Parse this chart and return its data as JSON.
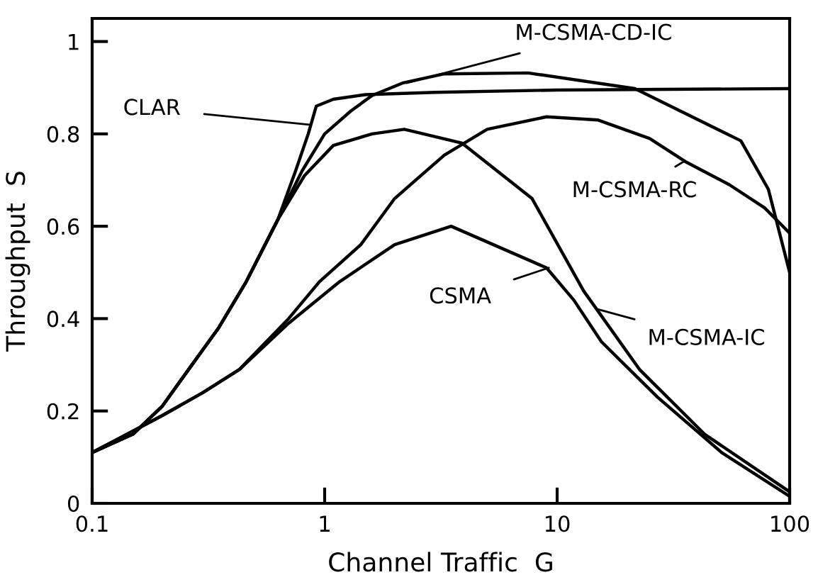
{
  "chart_data": {
    "type": "line",
    "xlabel": "Channel Traffic  G",
    "ylabel": "Throughput  S",
    "log": "x",
    "xlim": [
      0.1,
      100
    ],
    "xticks": [
      0.1,
      1,
      10,
      100
    ],
    "ylim": [
      0,
      1.05
    ],
    "yticks": [
      0,
      0.2,
      0.4,
      0.6,
      0.8,
      1
    ],
    "marker": "none",
    "line_style": "solid",
    "series": [
      {
        "color": "#000000",
        "x": [
          0.1,
          0.15,
          0.2,
          0.26,
          0.35,
          0.46,
          0.63,
          0.75,
          0.85,
          0.92,
          1.09,
          1.5,
          3,
          10,
          100
        ],
        "values": [
          0.11,
          0.15,
          0.21,
          0.29,
          0.38,
          0.48,
          0.615,
          0.72,
          0.8,
          0.86,
          0.875,
          0.885,
          0.89,
          0.895,
          0.898
        ]
      },
      {
        "color": "#000000",
        "x": [
          0.1,
          0.15,
          0.2,
          0.26,
          0.35,
          0.46,
          0.63,
          0.8,
          1.0,
          1.3,
          1.6,
          2.16,
          3.27,
          7.5,
          21.6,
          61.7,
          81,
          100
        ],
        "values": [
          0.11,
          0.15,
          0.21,
          0.29,
          0.38,
          0.48,
          0.615,
          0.72,
          0.8,
          0.85,
          0.883,
          0.91,
          0.93,
          0.932,
          0.898,
          0.785,
          0.68,
          0.5
        ]
      },
      {
        "color": "#000000",
        "x": [
          0.1,
          0.15,
          0.2,
          0.26,
          0.35,
          0.46,
          0.63,
          0.82,
          1.09,
          1.6,
          2.2,
          3.9,
          7.8,
          13,
          22.6,
          43,
          100
        ],
        "values": [
          0.11,
          0.15,
          0.21,
          0.29,
          0.38,
          0.48,
          0.615,
          0.71,
          0.775,
          0.8,
          0.81,
          0.78,
          0.66,
          0.46,
          0.29,
          0.15,
          0.025
        ]
      },
      {
        "color": "#000000",
        "x": [
          0.1,
          0.13,
          0.2,
          0.3,
          0.43,
          0.7,
          0.95,
          1.43,
          2,
          3.27,
          5,
          9,
          15,
          25,
          35.6,
          55,
          78,
          100
        ],
        "values": [
          0.11,
          0.14,
          0.19,
          0.24,
          0.29,
          0.4,
          0.48,
          0.56,
          0.66,
          0.754,
          0.81,
          0.837,
          0.83,
          0.79,
          0.74,
          0.69,
          0.64,
          0.585
        ]
      },
      {
        "color": "#000000",
        "x": [
          0.1,
          0.13,
          0.2,
          0.3,
          0.43,
          0.7,
          1.16,
          2,
          3.5,
          9,
          11.8,
          15.5,
          27,
          51,
          100
        ],
        "values": [
          0.11,
          0.14,
          0.19,
          0.24,
          0.29,
          0.39,
          0.48,
          0.56,
          0.6,
          0.51,
          0.44,
          0.35,
          0.23,
          0.11,
          0.015
        ]
      }
    ],
    "annotations": [
      {
        "text": "CLAR",
        "x": 0.86,
        "y": 0.82
      },
      {
        "text": "M-CSMA-CD-IC",
        "x": 2.25,
        "y": 0.91
      },
      {
        "text": "M-CSMA-RC",
        "x": 35,
        "y": 0.74
      },
      {
        "text": "CSMA",
        "x": 9.2,
        "y": 0.51
      },
      {
        "text": "M-CSMA-IC",
        "x": 15,
        "y": 0.42
      }
    ]
  }
}
